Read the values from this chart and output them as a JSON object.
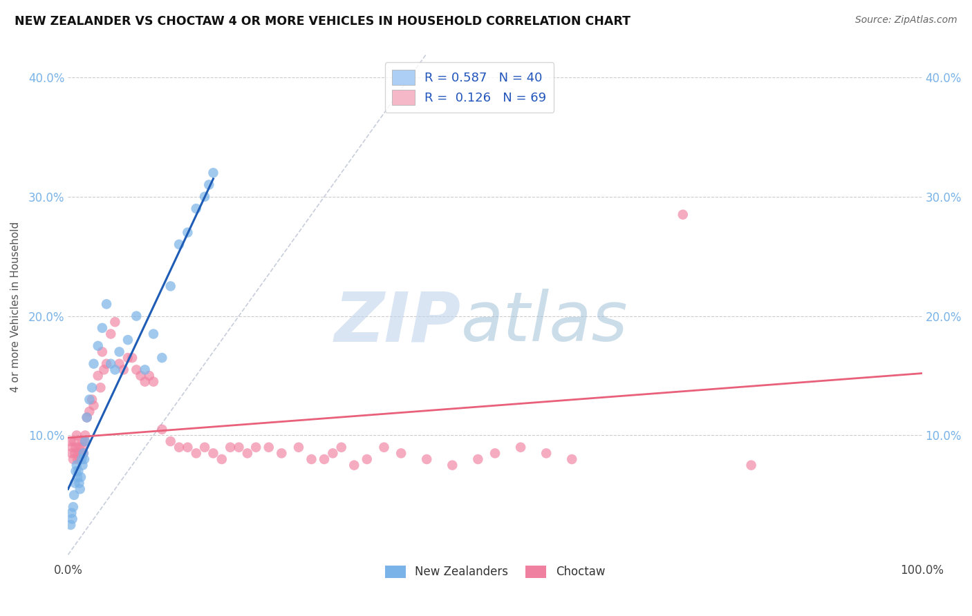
{
  "title": "NEW ZEALANDER VS CHOCTAW 4 OR MORE VEHICLES IN HOUSEHOLD CORRELATION CHART",
  "source_text": "Source: ZipAtlas.com",
  "ylabel": "4 or more Vehicles in Household",
  "xlim": [
    0.0,
    1.0
  ],
  "ylim": [
    -0.005,
    0.42
  ],
  "y_tick_vals": [
    0.1,
    0.2,
    0.3,
    0.4
  ],
  "y_tick_labels": [
    "10.0%",
    "20.0%",
    "30.0%",
    "40.0%"
  ],
  "nz_color": "#7ab3e8",
  "choctaw_color": "#f080a0",
  "nz_line_color": "#1f5cb5",
  "choctaw_line_color": "#e8607a",
  "nz_legend_color": "#aecff5",
  "choctaw_legend_color": "#f5b8c8",
  "watermark_zip_color": "#c8daef",
  "watermark_atlas_color": "#b0cce8",
  "background_color": "#ffffff",
  "nz_x": [
    0.003,
    0.004,
    0.005,
    0.006,
    0.007,
    0.008,
    0.009,
    0.01,
    0.011,
    0.012,
    0.013,
    0.014,
    0.015,
    0.016,
    0.017,
    0.018,
    0.019,
    0.02,
    0.022,
    0.025,
    0.028,
    0.03,
    0.035,
    0.04,
    0.045,
    0.05,
    0.055,
    0.06,
    0.07,
    0.08,
    0.09,
    0.1,
    0.11,
    0.12,
    0.13,
    0.14,
    0.15,
    0.16,
    0.165,
    0.17
  ],
  "nz_y": [
    0.025,
    0.035,
    0.03,
    0.04,
    0.05,
    0.06,
    0.07,
    0.075,
    0.065,
    0.07,
    0.06,
    0.055,
    0.065,
    0.08,
    0.075,
    0.085,
    0.08,
    0.095,
    0.115,
    0.13,
    0.14,
    0.16,
    0.175,
    0.19,
    0.21,
    0.16,
    0.155,
    0.17,
    0.18,
    0.2,
    0.155,
    0.185,
    0.165,
    0.225,
    0.26,
    0.27,
    0.29,
    0.3,
    0.31,
    0.32
  ],
  "choctaw_x": [
    0.003,
    0.004,
    0.005,
    0.006,
    0.007,
    0.008,
    0.009,
    0.01,
    0.011,
    0.012,
    0.013,
    0.014,
    0.015,
    0.016,
    0.017,
    0.018,
    0.019,
    0.02,
    0.022,
    0.025,
    0.028,
    0.03,
    0.035,
    0.038,
    0.04,
    0.042,
    0.045,
    0.05,
    0.055,
    0.06,
    0.065,
    0.07,
    0.075,
    0.08,
    0.085,
    0.09,
    0.095,
    0.1,
    0.11,
    0.12,
    0.13,
    0.14,
    0.15,
    0.16,
    0.17,
    0.18,
    0.19,
    0.2,
    0.21,
    0.22,
    0.235,
    0.25,
    0.27,
    0.285,
    0.3,
    0.31,
    0.32,
    0.335,
    0.35,
    0.37,
    0.39,
    0.42,
    0.45,
    0.48,
    0.5,
    0.53,
    0.56,
    0.59,
    0.72,
    0.8
  ],
  "choctaw_y": [
    0.095,
    0.085,
    0.09,
    0.08,
    0.095,
    0.085,
    0.09,
    0.1,
    0.08,
    0.085,
    0.09,
    0.08,
    0.085,
    0.09,
    0.095,
    0.085,
    0.095,
    0.1,
    0.115,
    0.12,
    0.13,
    0.125,
    0.15,
    0.14,
    0.17,
    0.155,
    0.16,
    0.185,
    0.195,
    0.16,
    0.155,
    0.165,
    0.165,
    0.155,
    0.15,
    0.145,
    0.15,
    0.145,
    0.105,
    0.095,
    0.09,
    0.09,
    0.085,
    0.09,
    0.085,
    0.08,
    0.09,
    0.09,
    0.085,
    0.09,
    0.09,
    0.085,
    0.09,
    0.08,
    0.08,
    0.085,
    0.09,
    0.075,
    0.08,
    0.09,
    0.085,
    0.08,
    0.075,
    0.08,
    0.085,
    0.09,
    0.085,
    0.08,
    0.285,
    0.075
  ],
  "nz_line_x": [
    0.0,
    0.17
  ],
  "nz_line_y": [
    0.055,
    0.315
  ],
  "choctaw_line_x": [
    0.0,
    1.0
  ],
  "choctaw_line_y": [
    0.098,
    0.152
  ],
  "ref_line_x": [
    0.0,
    0.42
  ],
  "ref_line_y": [
    0.0,
    0.42
  ]
}
